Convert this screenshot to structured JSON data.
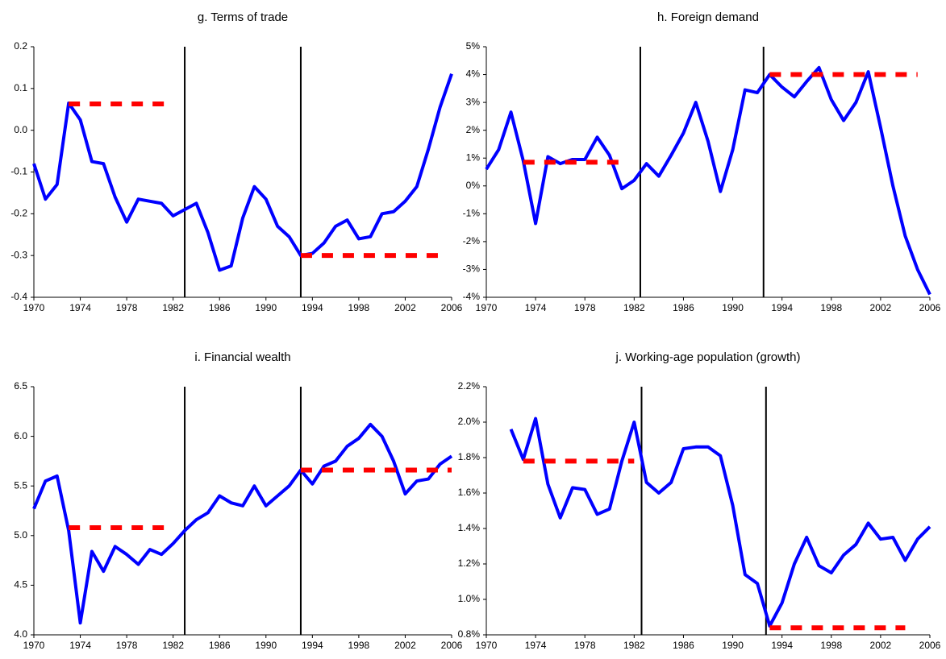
{
  "chart_data": [
    {
      "type": "line",
      "title": "g. Terms of trade",
      "x": [
        1970,
        1971,
        1972,
        1973,
        1974,
        1975,
        1976,
        1977,
        1978,
        1979,
        1980,
        1981,
        1982,
        1983,
        1984,
        1985,
        1986,
        1987,
        1988,
        1989,
        1990,
        1991,
        1992,
        1993,
        1994,
        1995,
        1996,
        1997,
        1998,
        1999,
        2000,
        2001,
        2002,
        2003,
        2004,
        2005,
        2006
      ],
      "series": [
        {
          "color": "#0000ff",
          "values": [
            -0.08,
            -0.165,
            -0.13,
            0.065,
            0.025,
            -0.075,
            -0.08,
            -0.16,
            -0.22,
            -0.165,
            -0.17,
            -0.175,
            -0.205,
            -0.19,
            -0.175,
            -0.245,
            -0.335,
            -0.325,
            -0.21,
            -0.135,
            -0.165,
            -0.23,
            -0.255,
            -0.3,
            -0.295,
            -0.27,
            -0.23,
            -0.215,
            -0.26,
            -0.255,
            -0.2,
            -0.195,
            -0.17,
            -0.135,
            -0.045,
            0.055,
            0.135
          ]
        },
        {
          "color": "#ff0000",
          "style": "dashed",
          "x": [
            1973,
            1982
          ],
          "values": [
            0.063,
            0.063
          ]
        },
        {
          "color": "#ff0000",
          "style": "dashed",
          "x": [
            1993,
            2005
          ],
          "values": [
            -0.3,
            -0.3
          ]
        }
      ],
      "vlines": [
        1983,
        1993
      ],
      "xlim": [
        1970,
        2006
      ],
      "xticks": [
        1970,
        1974,
        1978,
        1982,
        1986,
        1990,
        1994,
        1998,
        2002,
        2006
      ],
      "ylim": [
        -0.4,
        0.2
      ],
      "yticks": [
        -0.4,
        -0.3,
        -0.2,
        -0.1,
        {
          "value": 0,
          "label": "0.0"
        },
        0.1,
        0.2
      ]
    },
    {
      "type": "line",
      "title": "h. Foreign demand",
      "x": [
        1970,
        1971,
        1972,
        1973,
        1974,
        1975,
        1976,
        1977,
        1978,
        1979,
        1980,
        1981,
        1982,
        1983,
        1984,
        1985,
        1986,
        1987,
        1988,
        1989,
        1990,
        1991,
        1992,
        1993,
        1994,
        1995,
        1996,
        1997,
        1998,
        1999,
        2000,
        2001,
        2002,
        2003,
        2004,
        2005,
        2006
      ],
      "series": [
        {
          "color": "#0000ff",
          "values": [
            0.6,
            1.3,
            2.65,
            0.9,
            -1.35,
            1.05,
            0.8,
            0.95,
            0.95,
            1.75,
            1.1,
            -0.1,
            0.2,
            0.8,
            0.35,
            1.1,
            1.9,
            3.0,
            1.6,
            -0.2,
            1.3,
            3.45,
            3.35,
            4.0,
            3.55,
            3.2,
            3.75,
            4.25,
            3.1,
            2.35,
            3.0,
            4.1,
            2.1,
            0.0,
            -1.8,
            -3.0,
            -3.9
          ]
        },
        {
          "color": "#ff0000",
          "style": "dashed",
          "x": [
            1973,
            1981
          ],
          "values": [
            0.85,
            0.85
          ]
        },
        {
          "color": "#ff0000",
          "style": "dashed",
          "x": [
            1993,
            2005
          ],
          "values": [
            4.0,
            4.0
          ]
        }
      ],
      "vlines": [
        1982.5,
        1992.5
      ],
      "xlim": [
        1970,
        2006
      ],
      "xticks": [
        1970,
        1974,
        1978,
        1982,
        1986,
        1990,
        1994,
        1998,
        2002,
        2006
      ],
      "ylim": [
        -4,
        5
      ],
      "yticks": [
        {
          "value": -4,
          "label": "-4%"
        },
        {
          "value": -3,
          "label": "-3%"
        },
        {
          "value": -2,
          "label": "-2%"
        },
        {
          "value": -1,
          "label": "-1%"
        },
        {
          "value": 0,
          "label": "0%"
        },
        {
          "value": 1,
          "label": "1%"
        },
        {
          "value": 2,
          "label": "2%"
        },
        {
          "value": 3,
          "label": "3%"
        },
        {
          "value": 4,
          "label": "4%"
        },
        {
          "value": 5,
          "label": "5%"
        }
      ]
    },
    {
      "type": "line",
      "title": "i. Financial wealth",
      "x": [
        1970,
        1971,
        1972,
        1973,
        1974,
        1975,
        1976,
        1977,
        1978,
        1979,
        1980,
        1981,
        1982,
        1983,
        1984,
        1985,
        1986,
        1987,
        1988,
        1989,
        1990,
        1991,
        1992,
        1993,
        1994,
        1995,
        1996,
        1997,
        1998,
        1999,
        2000,
        2001,
        2002,
        2003,
        2004,
        2005,
        2006
      ],
      "series": [
        {
          "color": "#0000ff",
          "values": [
            5.27,
            5.55,
            5.6,
            5.05,
            4.12,
            4.84,
            4.64,
            4.89,
            4.81,
            4.71,
            4.86,
            4.81,
            4.92,
            5.05,
            5.16,
            5.23,
            5.4,
            5.33,
            5.3,
            5.5,
            5.3,
            5.4,
            5.5,
            5.66,
            5.52,
            5.7,
            5.75,
            5.9,
            5.98,
            6.12,
            6.0,
            5.75,
            5.42,
            5.55,
            5.57,
            5.72,
            5.8
          ]
        },
        {
          "color": "#ff0000",
          "style": "dashed",
          "x": [
            1973,
            1982
          ],
          "values": [
            5.08,
            5.08
          ]
        },
        {
          "color": "#ff0000",
          "style": "dashed",
          "x": [
            1993,
            2006
          ],
          "values": [
            5.66,
            5.66
          ]
        }
      ],
      "vlines": [
        1983,
        1993
      ],
      "xlim": [
        1970,
        2006
      ],
      "xticks": [
        1970,
        1974,
        1978,
        1982,
        1986,
        1990,
        1994,
        1998,
        2002,
        2006
      ],
      "ylim": [
        4,
        6.5
      ],
      "yticks": [
        {
          "value": 4,
          "label": "4.0"
        },
        4.5,
        {
          "value": 5,
          "label": "5.0"
        },
        5.5,
        {
          "value": 6,
          "label": "6.0"
        },
        6.5
      ]
    },
    {
      "type": "line",
      "title": "j. Working-age population (growth)",
      "x": [
        1970,
        1971,
        1972,
        1973,
        1974,
        1975,
        1976,
        1977,
        1978,
        1979,
        1980,
        1981,
        1982,
        1983,
        1984,
        1985,
        1986,
        1987,
        1988,
        1989,
        1990,
        1991,
        1992,
        1993,
        1994,
        1995,
        1996,
        1997,
        1998,
        1999,
        2000,
        2001,
        2002,
        2003,
        2004,
        2005,
        2006
      ],
      "series": [
        {
          "color": "#0000ff",
          "values": [
            null,
            null,
            1.96,
            1.79,
            2.02,
            1.65,
            1.46,
            1.63,
            1.62,
            1.48,
            1.51,
            1.78,
            2.0,
            1.66,
            1.6,
            1.66,
            1.85,
            1.86,
            1.86,
            1.81,
            1.53,
            1.14,
            1.09,
            0.85,
            0.98,
            1.2,
            1.35,
            1.19,
            1.15,
            1.25,
            1.31,
            1.43,
            1.34,
            1.35,
            1.22,
            1.34,
            1.41
          ]
        },
        {
          "color": "#ff0000",
          "style": "dashed",
          "x": [
            1973,
            1982
          ],
          "values": [
            1.78,
            1.78
          ]
        },
        {
          "color": "#ff0000",
          "style": "dashed",
          "x": [
            1993,
            2004
          ],
          "values": [
            0.84,
            0.84
          ]
        }
      ],
      "vlines": [
        1982.6,
        1992.7
      ],
      "xlim": [
        1970,
        2006
      ],
      "xticks": [
        1970,
        1974,
        1978,
        1982,
        1986,
        1990,
        1994,
        1998,
        2002,
        2006
      ],
      "ylim": [
        0.8,
        2.2
      ],
      "yticks": [
        {
          "value": 0.8,
          "label": "0.8%"
        },
        {
          "value": 1.0,
          "label": "1.0%"
        },
        {
          "value": 1.2,
          "label": "1.2%"
        },
        {
          "value": 1.4,
          "label": "1.4%"
        },
        {
          "value": 1.6,
          "label": "1.6%"
        },
        {
          "value": 1.8,
          "label": "1.8%"
        },
        {
          "value": 2.0,
          "label": "2.0%"
        },
        {
          "value": 2.2,
          "label": "2.2%"
        }
      ]
    }
  ]
}
